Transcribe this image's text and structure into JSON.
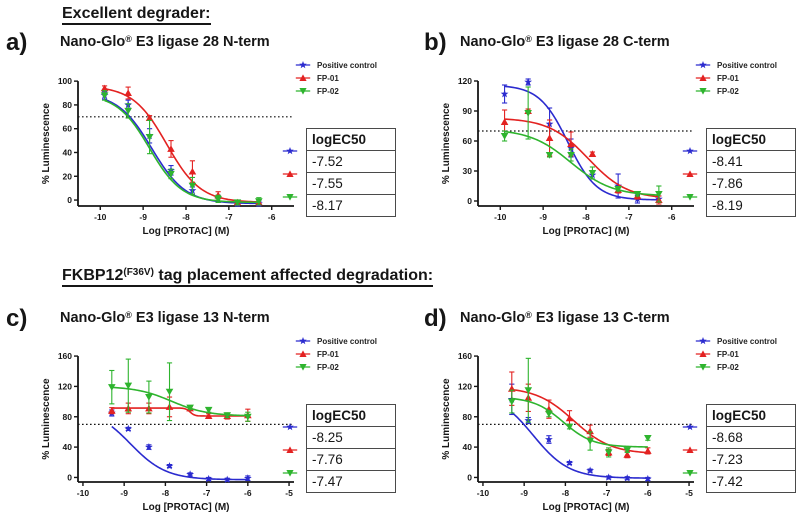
{
  "headings": {
    "first": "Excellent degrader:",
    "second_pre": "FKBP12",
    "second_sup": "(F36V)",
    "second_post": " tag placement affected degradation:"
  },
  "legend_labels": [
    "Positive control",
    "FP-01",
    "FP-02"
  ],
  "colors": {
    "positive_control": "#2B2BCF",
    "fp01": "#E32221",
    "fp02": "#2EB42E",
    "threshold": "#111111"
  },
  "panels": [
    {
      "letter": "a)",
      "title_parts": {
        "pre": "Nano-Glo",
        "sup": "®",
        "post": " E3 ligase 28 N-term"
      },
      "table": {
        "header": "logEC50",
        "values": [
          "-7.52",
          "-7.55",
          "-8.17"
        ]
      }
    },
    {
      "letter": "b)",
      "title_parts": {
        "pre": "Nano-Glo",
        "sup": "®",
        "post": " E3 ligase 28 C-term"
      },
      "table": {
        "header": "logEC50",
        "values": [
          "-8.41",
          "-7.86",
          "-8.19"
        ]
      }
    },
    {
      "letter": "c)",
      "title_parts": {
        "pre": "Nano-Glo",
        "sup": "®",
        "post": " E3 ligase 13 N-term"
      },
      "table": {
        "header": "logEC50",
        "values": [
          "-8.25",
          "-7.76",
          "-7.47"
        ]
      }
    },
    {
      "letter": "d)",
      "title_parts": {
        "pre": "Nano-Glo",
        "sup": "®",
        "post": " E3 ligase 13 C-term"
      },
      "table": {
        "header": "logEC50",
        "values": [
          "-8.68",
          "-7.23",
          "-7.42"
        ]
      }
    }
  ],
  "chart_data": [
    {
      "type": "scatter",
      "title": "Nano-Glo® E3 ligase 28 N-term",
      "xlabel": "Log [PROTAC] (M)",
      "ylabel": "% Luminescence",
      "xlim": [
        -10.52,
        -5.48
      ],
      "ylim": [
        -5,
        106
      ],
      "xticks": [
        -10,
        -9,
        -8,
        -7,
        -6
      ],
      "yticks": [
        0,
        20,
        40,
        60,
        80,
        100
      ],
      "threshold_y": 70,
      "grid": false,
      "legend_position": "upper-right-outside",
      "x": [
        -9.9,
        -9.35,
        -8.85,
        -8.35,
        -7.85,
        -7.25,
        -6.8,
        -6.3
      ],
      "series": [
        {
          "name": "Positive control",
          "color": "#2B2BCF",
          "marker": "star",
          "values": [
            88,
            80,
            54,
            25,
            8,
            1,
            -3,
            -3
          ],
          "errors": [
            3,
            4,
            6,
            4,
            3,
            3,
            2,
            2
          ],
          "logEC50": -7.52,
          "curve": {
            "top": 90,
            "bottom": -3,
            "logec50": -8.8,
            "hill": 1.1
          }
        },
        {
          "name": "FP-01",
          "color": "#E32221",
          "marker": "triangle-up",
          "values": [
            94,
            90,
            69,
            43,
            24,
            4,
            -2,
            -2
          ],
          "errors": [
            2,
            5,
            2,
            7,
            9,
            3,
            2,
            2
          ],
          "logEC50": -7.55,
          "curve": {
            "top": 96,
            "bottom": -2,
            "logec50": -8.45,
            "hill": 1.1
          }
        },
        {
          "name": "FP-02",
          "color": "#2EB42E",
          "marker": "triangle-down",
          "values": [
            88,
            75,
            53,
            22,
            12,
            1,
            -2,
            -1
          ],
          "errors": [
            4,
            6,
            14,
            4,
            7,
            3,
            2,
            3
          ],
          "logEC50": -8.17,
          "curve": {
            "top": 89,
            "bottom": -2,
            "logec50": -8.85,
            "hill": 1.15
          }
        }
      ]
    },
    {
      "type": "scatter",
      "title": "Nano-Glo® E3 ligase 28 C-term",
      "xlabel": "Log [PROTAC] (M)",
      "ylabel": "% Luminescence",
      "xlim": [
        -10.52,
        -5.48
      ],
      "ylim": [
        -5,
        127
      ],
      "xticks": [
        -10,
        -9,
        -8,
        -7,
        -6
      ],
      "yticks": [
        0,
        30,
        60,
        90,
        120
      ],
      "threshold_y": 70,
      "grid": false,
      "legend_position": "upper-right-outside",
      "x": [
        -9.9,
        -9.35,
        -8.85,
        -8.35,
        -7.85,
        -7.25,
        -6.8,
        -6.3
      ],
      "series": [
        {
          "name": "Positive control",
          "color": "#2B2BCF",
          "marker": "star",
          "values": [
            107,
            119,
            77,
            53,
            26,
            15,
            2,
            2
          ],
          "errors": [
            9,
            3,
            16,
            9,
            4,
            12,
            4,
            3
          ],
          "logEC50": -8.41,
          "curve": {
            "top": 116,
            "bottom": 1,
            "logec50": -8.42,
            "hill": 1.3
          }
        },
        {
          "name": "FP-01",
          "color": "#E32221",
          "marker": "triangle-up",
          "values": [
            79,
            90,
            63,
            57,
            47,
            11,
            5,
            1
          ],
          "errors": [
            12,
            2,
            18,
            12,
            2,
            3,
            3,
            4
          ],
          "logEC50": -7.86,
          "curve": {
            "top": 83,
            "bottom": 2,
            "logec50": -7.95,
            "hill": 0.95
          }
        },
        {
          "name": "FP-02",
          "color": "#2EB42E",
          "marker": "triangle-down",
          "values": [
            65,
            88,
            46,
            46,
            28,
            12,
            7,
            7
          ],
          "errors": [
            5,
            26,
            2,
            6,
            6,
            2,
            2,
            8
          ],
          "logEC50": -8.19,
          "curve": {
            "top": 72,
            "bottom": 5,
            "logec50": -8.35,
            "hill": 0.9
          }
        }
      ]
    },
    {
      "type": "scatter",
      "title": "Nano-Glo® E3 ligase 13 N-term",
      "xlabel": "Log [PROTAC] (M)",
      "ylabel": "% Luminescence",
      "xlim": [
        -10.12,
        -4.88
      ],
      "ylim": [
        -6,
        168
      ],
      "xticks": [
        -10,
        -9,
        -8,
        -7,
        -6,
        -5
      ],
      "yticks": [
        0,
        40,
        80,
        120,
        160
      ],
      "threshold_y": 70,
      "grid": false,
      "legend_position": "upper-right-outside",
      "x": [
        -9.3,
        -8.9,
        -8.4,
        -7.9,
        -7.4,
        -6.95,
        -6.5,
        -6.0
      ],
      "series": [
        {
          "name": "Positive control",
          "color": "#2B2BCF",
          "marker": "star",
          "values": [
            85,
            64,
            40,
            15,
            4,
            -2,
            -3,
            -1
          ],
          "errors": [
            4,
            2,
            3,
            2,
            2,
            2,
            2,
            3
          ],
          "logEC50": -8.25,
          "curve": {
            "top": 92,
            "bottom": -3,
            "logec50": -8.85,
            "hill": 1.0
          }
        },
        {
          "name": "FP-01",
          "color": "#E32221",
          "marker": "triangle-up",
          "values": [
            88,
            91,
            91,
            93,
            91,
            81,
            81,
            82
          ],
          "errors": [
            4,
            7,
            7,
            13,
            2,
            3,
            4,
            8
          ],
          "logEC50": -7.76,
          "curve": {
            "top": 91.5,
            "bottom": 81,
            "logec50": -7.4,
            "hill": 8
          }
        },
        {
          "name": "FP-02",
          "color": "#2EB42E",
          "marker": "triangle-down",
          "values": [
            119,
            121,
            106,
            113,
            92,
            89,
            82,
            80
          ],
          "errors": [
            22,
            35,
            21,
            38,
            2,
            3,
            3,
            6
          ],
          "logEC50": -7.47,
          "curve": {
            "top": 120,
            "bottom": 81,
            "logec50": -7.85,
            "hill": 1.0
          }
        }
      ]
    },
    {
      "type": "scatter",
      "title": "Nano-Glo® E3 ligase 13 C-term",
      "xlabel": "Log [PROTAC] (M)",
      "ylabel": "% Luminescence",
      "xlim": [
        -10.12,
        -4.88
      ],
      "ylim": [
        -6,
        168
      ],
      "xticks": [
        -10,
        -9,
        -8,
        -7,
        -6,
        -5
      ],
      "yticks": [
        0,
        40,
        80,
        120,
        160
      ],
      "threshold_y": 70,
      "grid": false,
      "legend_position": "upper-right-outside",
      "x": [
        -9.3,
        -8.9,
        -8.4,
        -7.9,
        -7.4,
        -6.95,
        -6.5,
        -6.0
      ],
      "series": [
        {
          "name": "Positive control",
          "color": "#2B2BCF",
          "marker": "star",
          "values": [
            103,
            75,
            50,
            19,
            9,
            0,
            -1,
            -2
          ],
          "errors": [
            20,
            4,
            5,
            2,
            2,
            2,
            2,
            2
          ],
          "logEC50": -8.68,
          "curve": {
            "top": 112,
            "bottom": -1,
            "logec50": -8.78,
            "hill": 1.0
          }
        },
        {
          "name": "FP-01",
          "color": "#E32221",
          "marker": "triangle-up",
          "values": [
            117,
            105,
            90,
            78,
            61,
            33,
            30,
            35
          ],
          "errors": [
            22,
            18,
            12,
            10,
            8,
            4,
            4,
            4
          ],
          "logEC50": -7.23,
          "curve": {
            "top": 119,
            "bottom": 31,
            "logec50": -7.8,
            "hill": 0.95
          }
        },
        {
          "name": "FP-02",
          "color": "#2EB42E",
          "marker": "triangle-down",
          "values": [
            100,
            115,
            84,
            67,
            48,
            33,
            36,
            52
          ],
          "errors": [
            15,
            42,
            4,
            3,
            12,
            6,
            3,
            3
          ],
          "logEC50": -7.42,
          "curve": {
            "top": 106,
            "bottom": 40,
            "logec50": -8.05,
            "hill": 1.2
          }
        }
      ]
    }
  ]
}
